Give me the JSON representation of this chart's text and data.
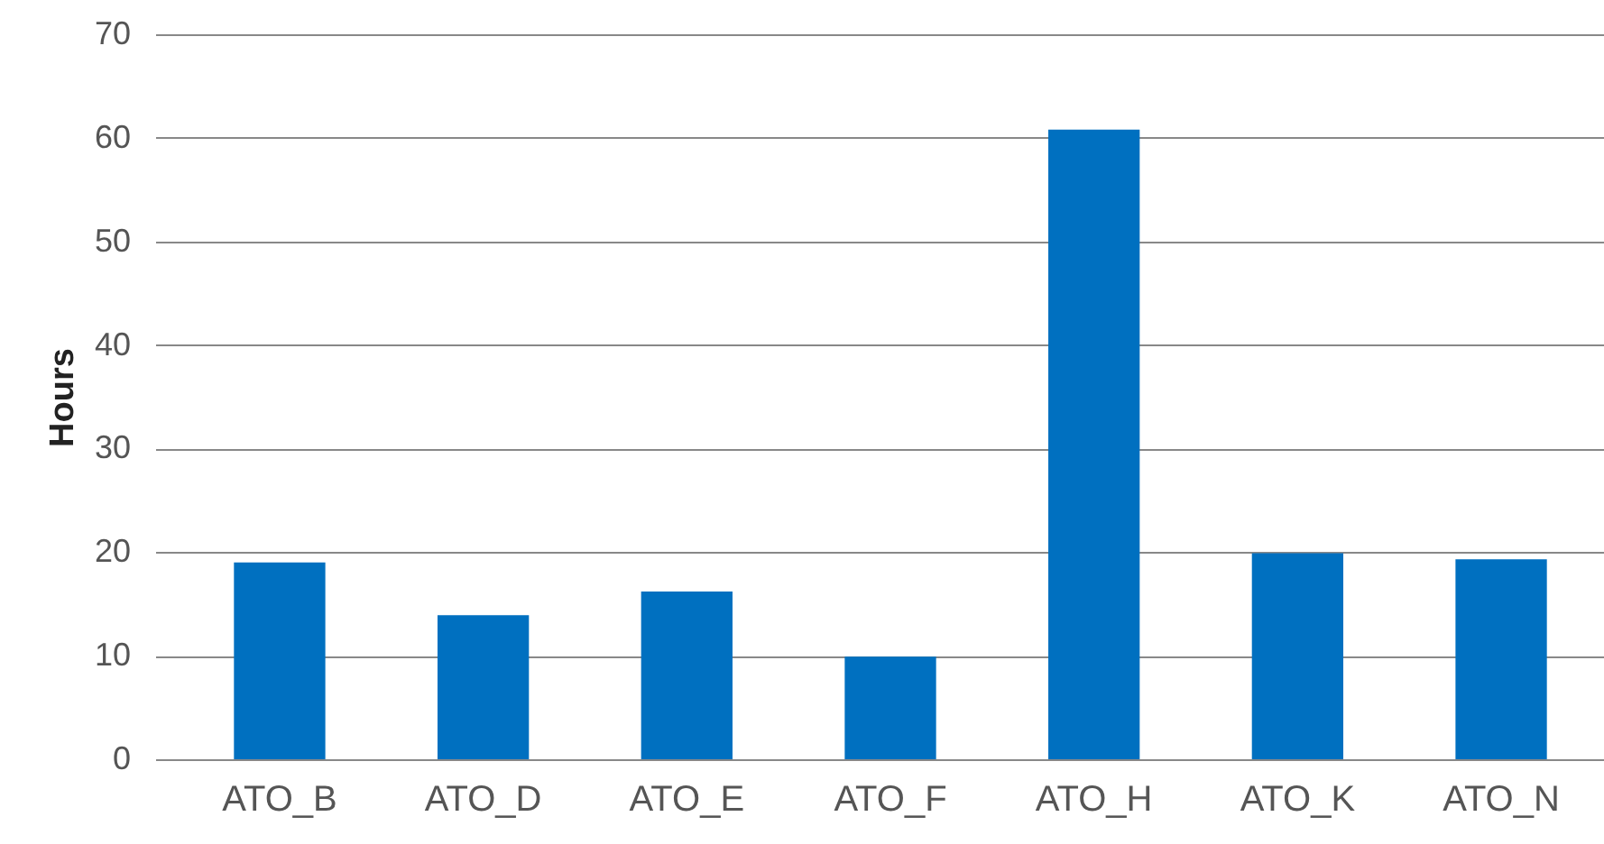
{
  "chart_data": {
    "type": "bar",
    "ylabel": "Hours",
    "categories": [
      "ATO_B",
      "ATO_D",
      "ATO_E",
      "ATO_F",
      "ATO_H",
      "ATO_K",
      "ATO_N"
    ],
    "values": [
      19.0,
      13.9,
      16.2,
      9.9,
      60.8,
      19.9,
      19.3
    ],
    "color": "#0070c0",
    "ylim": [
      0,
      70
    ],
    "yticks": [
      0,
      10,
      20,
      30,
      40,
      50,
      60,
      70
    ],
    "grid": "y"
  }
}
